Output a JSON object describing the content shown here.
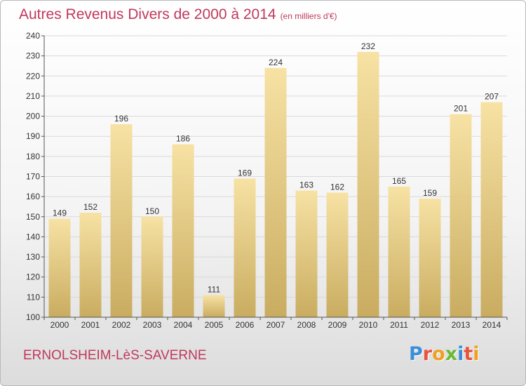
{
  "header": {
    "title": "Autres Revenus Divers de 2000 à 2014",
    "subtitle": "(en milliers d'€)"
  },
  "footer": {
    "location": "ERNOLSHEIM-LèS-SAVERNE"
  },
  "logo": {
    "text": "Proxiti",
    "colors": [
      "#3a8fd6",
      "#e8553c",
      "#f0a020",
      "#6bb934",
      "#3a8fd6",
      "#e8553c",
      "#f0a020"
    ]
  },
  "colors": {
    "bar_light": "#f7e2a4",
    "bar_dark": "#c9ac60",
    "axis": "#555555",
    "grid": "#d9d9d9"
  },
  "chart_data": {
    "type": "bar",
    "categories": [
      "2000",
      "2001",
      "2002",
      "2003",
      "2004",
      "2005",
      "2006",
      "2007",
      "2008",
      "2009",
      "2010",
      "2011",
      "2012",
      "2013",
      "2014"
    ],
    "values": [
      149,
      152,
      196,
      150,
      186,
      111,
      169,
      224,
      163,
      162,
      232,
      165,
      159,
      201,
      207
    ],
    "ylim": [
      100,
      240
    ],
    "yticks": [
      100,
      110,
      120,
      130,
      140,
      150,
      160,
      170,
      180,
      190,
      200,
      210,
      220,
      230,
      240
    ],
    "grid": true,
    "title": "Autres Revenus Divers de 2000 à 2014",
    "xlabel": "",
    "ylabel": ""
  }
}
